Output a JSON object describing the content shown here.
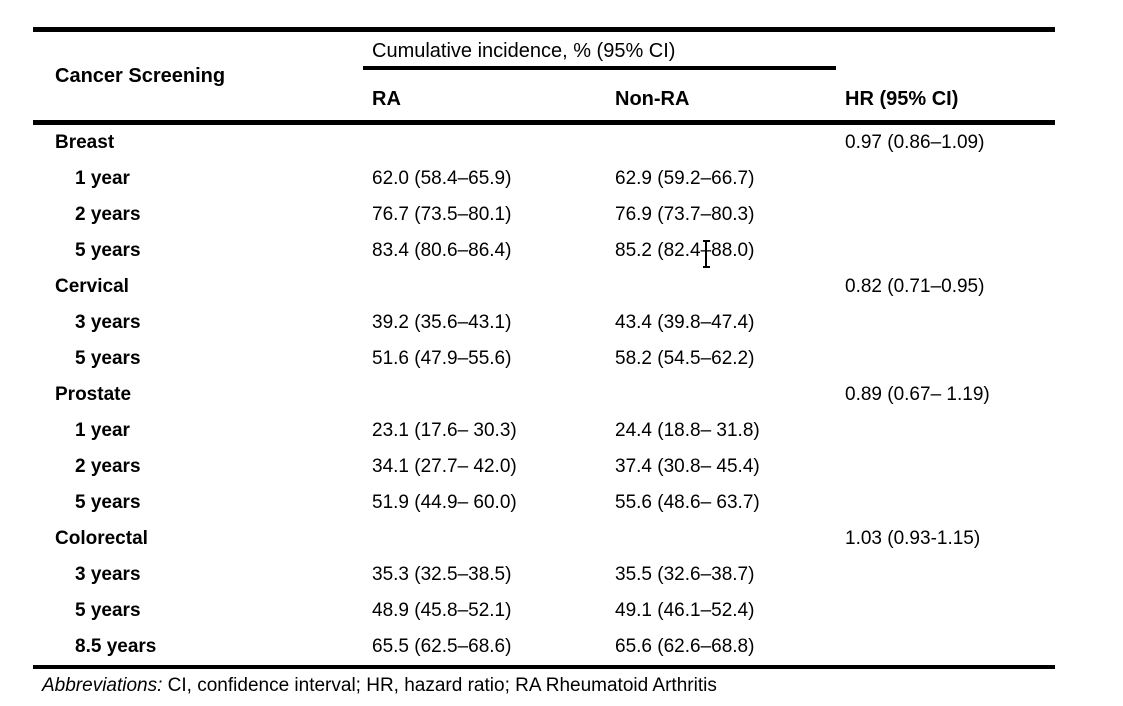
{
  "page": {
    "background": "#ffffff",
    "text_color": "#000000",
    "rule_color": "#000000"
  },
  "table": {
    "header": {
      "cancer_screening": "Cancer Screening",
      "spanner": "Cumulative incidence, % (95% CI)",
      "ra": "RA",
      "non_ra": "Non-RA",
      "hr": "HR (95% CI)"
    },
    "groups": [
      {
        "name": "Breast",
        "hr": "0.97 (0.86–1.09)",
        "rows": [
          {
            "label": "1 year",
            "ra": "62.0 (58.4–65.9)",
            "non_ra": "62.9 (59.2–66.7)"
          },
          {
            "label": "2 years",
            "ra": "76.7 (73.5–80.1)",
            "non_ra": "76.9 (73.7–80.3)"
          },
          {
            "label": "5 years",
            "ra": "83.4 (80.6–86.4)",
            "non_ra": "85.2 (82.4–88.0)"
          }
        ]
      },
      {
        "name": "Cervical",
        "hr": "0.82 (0.71–0.95)",
        "rows": [
          {
            "label": "3 years",
            "ra": "39.2 (35.6–43.1)",
            "non_ra": "43.4 (39.8–47.4)"
          },
          {
            "label": "5 years",
            "ra": "51.6 (47.9–55.6)",
            "non_ra": "58.2 (54.5–62.2)"
          }
        ]
      },
      {
        "name": "Prostate",
        "hr": "0.89 (0.67– 1.19)",
        "rows": [
          {
            "label": "1 year",
            "ra": "23.1 (17.6– 30.3)",
            "non_ra": "24.4 (18.8– 31.8)"
          },
          {
            "label": "2 years",
            "ra": "34.1 (27.7– 42.0)",
            "non_ra": "37.4 (30.8– 45.4)"
          },
          {
            "label": "5 years",
            "ra": "51.9 (44.9– 60.0)",
            "non_ra": "55.6 (48.6– 63.7)"
          }
        ]
      },
      {
        "name": "Colorectal",
        "hr": "1.03 (0.93-1.15)",
        "rows": [
          {
            "label": "3 years",
            "ra": "35.3 (32.5–38.5)",
            "non_ra": "35.5 (32.6–38.7)"
          },
          {
            "label": "5 years",
            "ra": "48.9 (45.8–52.1)",
            "non_ra": "49.1 (46.1–52.4)"
          },
          {
            "label": "8.5 years",
            "ra": "65.5 (62.5–68.6)",
            "non_ra": "65.6 (62.6–68.8)"
          }
        ]
      }
    ],
    "footnote": {
      "label": "Abbreviations:",
      "text": " CI, confidence interval; HR, hazard ratio; RA Rheumatoid Arthritis"
    }
  },
  "artifacts": {
    "text_cursor_after": "85.2 (82.4",
    "text_cursor_cell": "Breast 5 years Non-RA"
  }
}
